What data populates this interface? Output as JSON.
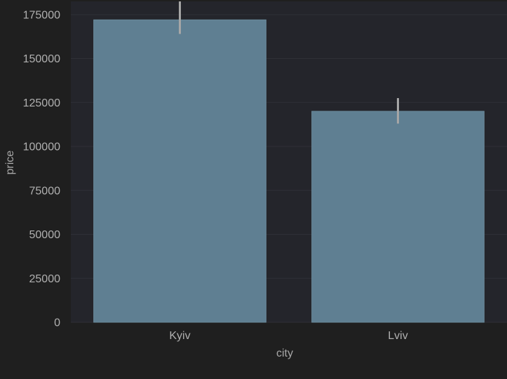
{
  "chart_data": {
    "type": "bar",
    "title": "",
    "xlabel": "city",
    "ylabel": "price",
    "categories": [
      "Kyiv",
      "Lviv"
    ],
    "values": [
      172000,
      120000
    ],
    "error_bars": [
      {
        "low": 164000,
        "high": 182500
      },
      {
        "low": 113000,
        "high": 127500
      }
    ],
    "ylim": [
      0,
      182500
    ],
    "yticks": [
      0,
      25000,
      50000,
      75000,
      100000,
      125000,
      150000,
      175000
    ],
    "ytick_labels": [
      "0",
      "25000",
      "50000",
      "75000",
      "100000",
      "125000",
      "150000",
      "175000"
    ],
    "grid": true,
    "legend": "none",
    "colors": {
      "figure_background": "#1f1f1f",
      "plot_background": "#24252b",
      "grid": "#2f3037",
      "bar": "#5f7f92",
      "bar_edge": "#6b8b9c",
      "error_bar": "#a6a6a6",
      "tick_text": "#b0b0b0",
      "label_text": "#a8a8a8"
    }
  }
}
